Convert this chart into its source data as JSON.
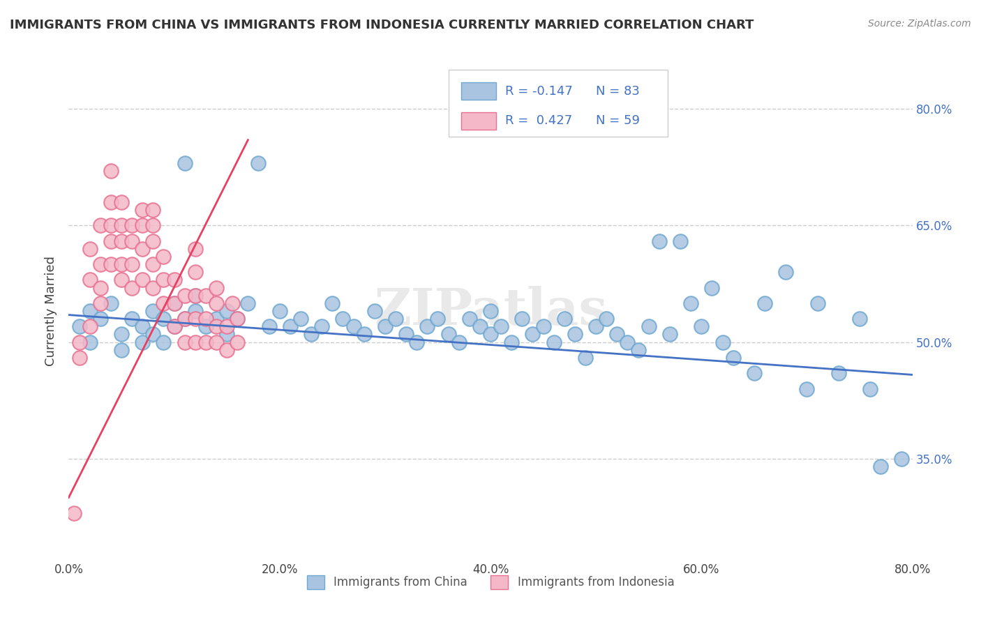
{
  "title": "IMMIGRANTS FROM CHINA VS IMMIGRANTS FROM INDONESIA CURRENTLY MARRIED CORRELATION CHART",
  "source": "Source: ZipAtlas.com",
  "ylabel": "Currently Married",
  "xlabel_ticks": [
    "0.0%",
    "20.0%",
    "40.0%",
    "60.0%",
    "80.0%"
  ],
  "xlabel_vals": [
    0.0,
    0.2,
    0.4,
    0.6,
    0.8
  ],
  "ylabel_ticks_right": [
    "35.0%",
    "50.0%",
    "65.0%",
    "80.0%"
  ],
  "ylabel_vals": [
    0.35,
    0.5,
    0.65,
    0.8
  ],
  "xlim": [
    0.0,
    0.8
  ],
  "ylim": [
    0.22,
    0.86
  ],
  "china_color": "#a8c4e0",
  "china_edge": "#6fa8d0",
  "indonesia_color": "#f4b8c8",
  "indonesia_edge": "#e87090",
  "trend_china_color": "#4472c4",
  "trend_indonesia_color": "#e84060",
  "watermark": "ZIPatlas",
  "legend_R_china": "R = -0.147",
  "legend_N_china": "N = 83",
  "legend_R_indonesia": "R =  0.427",
  "legend_N_indonesia": "N = 59",
  "china_x": [
    0.01,
    0.02,
    0.02,
    0.03,
    0.04,
    0.05,
    0.05,
    0.06,
    0.07,
    0.07,
    0.08,
    0.08,
    0.09,
    0.09,
    0.1,
    0.1,
    0.11,
    0.11,
    0.12,
    0.12,
    0.13,
    0.14,
    0.15,
    0.15,
    0.16,
    0.17,
    0.18,
    0.19,
    0.2,
    0.21,
    0.22,
    0.23,
    0.24,
    0.25,
    0.26,
    0.27,
    0.28,
    0.29,
    0.3,
    0.31,
    0.32,
    0.33,
    0.34,
    0.35,
    0.36,
    0.37,
    0.38,
    0.39,
    0.4,
    0.4,
    0.41,
    0.42,
    0.43,
    0.44,
    0.45,
    0.46,
    0.47,
    0.48,
    0.49,
    0.5,
    0.51,
    0.52,
    0.53,
    0.54,
    0.55,
    0.56,
    0.57,
    0.58,
    0.59,
    0.6,
    0.61,
    0.62,
    0.63,
    0.65,
    0.66,
    0.68,
    0.7,
    0.71,
    0.73,
    0.75,
    0.76,
    0.77,
    0.79
  ],
  "china_y": [
    0.52,
    0.54,
    0.5,
    0.53,
    0.55,
    0.51,
    0.49,
    0.53,
    0.52,
    0.5,
    0.54,
    0.51,
    0.53,
    0.5,
    0.55,
    0.52,
    0.73,
    0.53,
    0.56,
    0.54,
    0.52,
    0.53,
    0.54,
    0.51,
    0.53,
    0.55,
    0.73,
    0.52,
    0.54,
    0.52,
    0.53,
    0.51,
    0.52,
    0.55,
    0.53,
    0.52,
    0.51,
    0.54,
    0.52,
    0.53,
    0.51,
    0.5,
    0.52,
    0.53,
    0.51,
    0.5,
    0.53,
    0.52,
    0.51,
    0.54,
    0.52,
    0.5,
    0.53,
    0.51,
    0.52,
    0.5,
    0.53,
    0.51,
    0.48,
    0.52,
    0.53,
    0.51,
    0.5,
    0.49,
    0.52,
    0.63,
    0.51,
    0.63,
    0.55,
    0.52,
    0.57,
    0.5,
    0.48,
    0.46,
    0.55,
    0.59,
    0.44,
    0.55,
    0.46,
    0.53,
    0.44,
    0.34,
    0.35
  ],
  "indonesia_x": [
    0.005,
    0.01,
    0.01,
    0.02,
    0.02,
    0.02,
    0.03,
    0.03,
    0.03,
    0.03,
    0.04,
    0.04,
    0.04,
    0.04,
    0.04,
    0.05,
    0.05,
    0.05,
    0.05,
    0.05,
    0.06,
    0.06,
    0.06,
    0.06,
    0.07,
    0.07,
    0.07,
    0.07,
    0.08,
    0.08,
    0.08,
    0.08,
    0.08,
    0.09,
    0.09,
    0.09,
    0.1,
    0.1,
    0.1,
    0.11,
    0.11,
    0.11,
    0.12,
    0.12,
    0.12,
    0.12,
    0.12,
    0.13,
    0.13,
    0.13,
    0.14,
    0.14,
    0.14,
    0.14,
    0.15,
    0.15,
    0.155,
    0.16,
    0.16
  ],
  "indonesia_y": [
    0.28,
    0.48,
    0.5,
    0.52,
    0.58,
    0.62,
    0.55,
    0.57,
    0.6,
    0.65,
    0.6,
    0.63,
    0.65,
    0.68,
    0.72,
    0.58,
    0.6,
    0.63,
    0.65,
    0.68,
    0.57,
    0.6,
    0.63,
    0.65,
    0.58,
    0.62,
    0.65,
    0.67,
    0.57,
    0.6,
    0.63,
    0.65,
    0.67,
    0.55,
    0.58,
    0.61,
    0.52,
    0.55,
    0.58,
    0.5,
    0.53,
    0.56,
    0.5,
    0.53,
    0.56,
    0.59,
    0.62,
    0.5,
    0.53,
    0.56,
    0.5,
    0.52,
    0.55,
    0.57,
    0.49,
    0.52,
    0.55,
    0.5,
    0.53
  ]
}
